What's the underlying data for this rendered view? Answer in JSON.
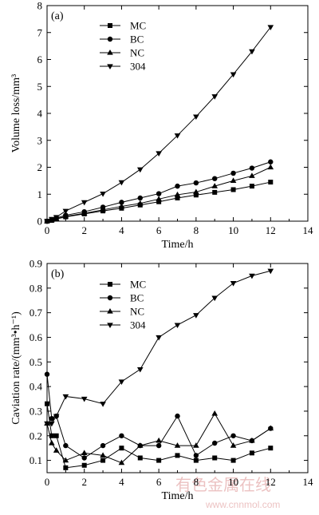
{
  "watermark": {
    "text_cn": "有色金属在线",
    "url": "www.cnnmol.com"
  },
  "chart_data": [
    {
      "type": "line",
      "panel_label": "(a)",
      "xlabel": "Time/h",
      "ylabel": "Volume loss/mm³",
      "xlim": [
        0,
        14
      ],
      "ylim": [
        0,
        8
      ],
      "xticks": [
        0,
        2,
        4,
        6,
        8,
        10,
        12,
        14
      ],
      "yticks": [
        0,
        1,
        2,
        3,
        4,
        5,
        6,
        7,
        8
      ],
      "legend_position": "top-left",
      "series": [
        {
          "name": "MC",
          "marker": "square",
          "x": [
            0,
            0.25,
            0.5,
            1,
            2,
            3,
            4,
            5,
            6,
            7,
            8,
            9,
            10,
            11,
            12
          ],
          "y": [
            0,
            0.03,
            0.08,
            0.16,
            0.27,
            0.38,
            0.48,
            0.6,
            0.72,
            0.86,
            0.97,
            1.07,
            1.17,
            1.3,
            1.45
          ]
        },
        {
          "name": "BC",
          "marker": "circle",
          "x": [
            0,
            0.25,
            0.5,
            1,
            2,
            3,
            4,
            5,
            6,
            7,
            8,
            9,
            10,
            11,
            12
          ],
          "y": [
            0,
            0.05,
            0.12,
            0.22,
            0.35,
            0.52,
            0.7,
            0.86,
            1.02,
            1.3,
            1.42,
            1.58,
            1.78,
            1.97,
            2.2
          ]
        },
        {
          "name": "NC",
          "marker": "triangle-up",
          "x": [
            0,
            0.25,
            0.5,
            1,
            2,
            3,
            4,
            5,
            6,
            7,
            8,
            9,
            10,
            11,
            12
          ],
          "y": [
            0,
            0.04,
            0.09,
            0.18,
            0.29,
            0.42,
            0.55,
            0.66,
            0.82,
            0.98,
            1.08,
            1.3,
            1.5,
            1.68,
            2.0
          ]
        },
        {
          "name": "304",
          "marker": "triangle-down",
          "x": [
            0,
            0.25,
            0.5,
            1,
            2,
            3,
            4,
            5,
            6,
            7,
            8,
            9,
            10,
            11,
            12
          ],
          "y": [
            0,
            0.08,
            0.15,
            0.38,
            0.7,
            1.02,
            1.44,
            1.92,
            2.52,
            3.18,
            3.88,
            4.63,
            5.45,
            6.3,
            7.2
          ]
        }
      ]
    },
    {
      "type": "line",
      "panel_label": "(b)",
      "xlabel": "Time/h",
      "ylabel": "Caviation rate/(mm³•h⁻¹)",
      "xlim": [
        0,
        14
      ],
      "ylim": [
        0.05,
        0.9
      ],
      "xticks": [
        0,
        2,
        4,
        6,
        8,
        10,
        12,
        14
      ],
      "yticks": [
        0.1,
        0.2,
        0.3,
        0.4,
        0.5,
        0.6,
        0.7,
        0.8,
        0.9
      ],
      "legend_position": "top-left",
      "series": [
        {
          "name": "MC",
          "marker": "square",
          "x": [
            0,
            0.25,
            0.5,
            1,
            2,
            3,
            4,
            5,
            6,
            7,
            8,
            9,
            10,
            11,
            12
          ],
          "y": [
            0.33,
            0.2,
            0.2,
            0.07,
            0.08,
            0.1,
            0.15,
            0.11,
            0.1,
            0.12,
            0.1,
            0.11,
            0.1,
            0.13,
            0.15
          ]
        },
        {
          "name": "BC",
          "marker": "circle",
          "x": [
            0,
            0.25,
            0.5,
            1,
            2,
            3,
            4,
            5,
            6,
            7,
            8,
            9,
            10,
            11,
            12
          ],
          "y": [
            0.45,
            0.27,
            0.28,
            0.16,
            0.11,
            0.16,
            0.2,
            0.16,
            0.16,
            0.28,
            0.12,
            0.17,
            0.2,
            0.18,
            0.23
          ]
        },
        {
          "name": "NC",
          "marker": "triangle-up",
          "x": [
            0,
            0.25,
            0.5,
            1,
            2,
            3,
            4,
            5,
            6,
            7,
            8,
            9,
            10,
            11,
            12
          ],
          "y": [
            0.25,
            0.17,
            0.14,
            0.1,
            0.13,
            0.12,
            0.09,
            0.16,
            0.18,
            0.16,
            0.16,
            0.29,
            0.16,
            0.18,
            0.23
          ]
        },
        {
          "name": "304",
          "marker": "triangle-down",
          "x": [
            0,
            0.25,
            0.5,
            1,
            2,
            3,
            4,
            5,
            6,
            7,
            8,
            9,
            10,
            11,
            12
          ],
          "y": [
            0.25,
            0.25,
            0.28,
            0.36,
            0.35,
            0.33,
            0.42,
            0.47,
            0.6,
            0.65,
            0.69,
            0.76,
            0.82,
            0.85,
            0.87
          ]
        }
      ]
    }
  ]
}
